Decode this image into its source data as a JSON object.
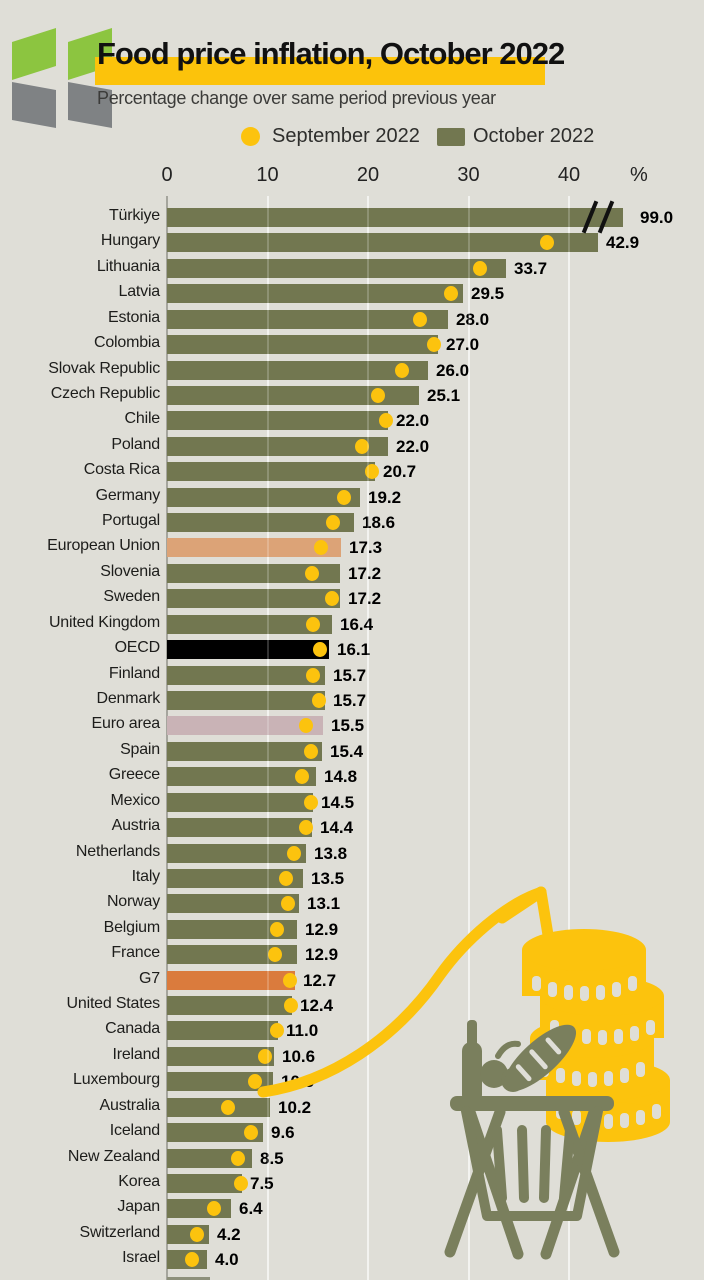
{
  "header": {
    "title_highlighted_part": "Food price inflation,",
    "title_rest": " October 2022",
    "subtitle": "Percentage change over same period previous year"
  },
  "legend": {
    "september_label": "September 2022",
    "october_label": "October 2022"
  },
  "axis": {
    "tick_labels": [
      "0",
      "10",
      "20",
      "30",
      "40"
    ],
    "unit_label": "%"
  },
  "colors": {
    "background": "#dfded7",
    "bar_default": "#727750",
    "dot_yellow": "#fcc30e",
    "highlight_yellow": "#fcc30b",
    "eu_bar": "#dca377",
    "oecd_bar": "#000000",
    "euro_area_bar": "#c9b3b6",
    "g7_bar": "#da7b3d",
    "logo_green": "#8cc540",
    "logo_gray": "#7f8284",
    "illustration_olive": "#7a7f5d"
  },
  "icons": {
    "logo": "oecd-double-chevron-logo",
    "illustration": "grocery-basket-with-coins-and-rising-arrow"
  },
  "chart_data": {
    "type": "bar",
    "orientation": "horizontal",
    "title": "Food price inflation, October 2022",
    "subtitle": "Percentage change over same period previous year",
    "xlabel": "%",
    "xlim": [
      0,
      47
    ],
    "gridlines": [
      10,
      20,
      30,
      40
    ],
    "grid": true,
    "legend_position": "top",
    "series_info": [
      {
        "name": "September 2022",
        "style": "dot",
        "color": "#fcc30e"
      },
      {
        "name": "October 2022",
        "style": "bar",
        "color": "#727750"
      }
    ],
    "truncate_display_value": 45.4,
    "rows": [
      {
        "label": "Türkiye",
        "oct": 99.0,
        "sep": null,
        "truncated": true
      },
      {
        "label": "Hungary",
        "oct": 42.9,
        "sep": 37.8
      },
      {
        "label": "Lithuania",
        "oct": 33.7,
        "sep": 31.1
      },
      {
        "label": "Latvia",
        "oct": 29.5,
        "sep": 28.3
      },
      {
        "label": "Estonia",
        "oct": 28.0,
        "sep": 25.2
      },
      {
        "label": "Colombia",
        "oct": 27.0,
        "sep": 26.6
      },
      {
        "label": "Slovak Republic",
        "oct": 26.0,
        "sep": 23.4
      },
      {
        "label": "Czech Republic",
        "oct": 25.1,
        "sep": 21.0
      },
      {
        "label": "Chile",
        "oct": 22.0,
        "sep": 21.8
      },
      {
        "label": "Poland",
        "oct": 22.0,
        "sep": 19.4
      },
      {
        "label": "Costa Rica",
        "oct": 20.7,
        "sep": 20.4
      },
      {
        "label": "Germany",
        "oct": 19.2,
        "sep": 17.6
      },
      {
        "label": "Portugal",
        "oct": 18.6,
        "sep": 16.5
      },
      {
        "label": "European Union",
        "oct": 17.3,
        "sep": 15.3,
        "color": "#dca377"
      },
      {
        "label": "Slovenia",
        "oct": 17.2,
        "sep": 14.4
      },
      {
        "label": "Sweden",
        "oct": 17.2,
        "sep": 16.4
      },
      {
        "label": "United Kingdom",
        "oct": 16.4,
        "sep": 14.5
      },
      {
        "label": "OECD",
        "oct": 16.1,
        "sep": 15.2,
        "color": "#000000"
      },
      {
        "label": "Finland",
        "oct": 15.7,
        "sep": 14.5
      },
      {
        "label": "Denmark",
        "oct": 15.7,
        "sep": 15.1
      },
      {
        "label": "Euro area",
        "oct": 15.5,
        "sep": 13.8,
        "color": "#c9b3b6"
      },
      {
        "label": "Spain",
        "oct": 15.4,
        "sep": 14.3
      },
      {
        "label": "Greece",
        "oct": 14.8,
        "sep": 13.4
      },
      {
        "label": "Mexico",
        "oct": 14.5,
        "sep": 14.3
      },
      {
        "label": "Austria",
        "oct": 14.4,
        "sep": 13.8
      },
      {
        "label": "Netherlands",
        "oct": 13.8,
        "sep": 12.6
      },
      {
        "label": "Italy",
        "oct": 13.5,
        "sep": 11.8
      },
      {
        "label": "Norway",
        "oct": 13.1,
        "sep": 12.0
      },
      {
        "label": "Belgium",
        "oct": 12.9,
        "sep": 10.9
      },
      {
        "label": "France",
        "oct": 12.9,
        "sep": 10.7
      },
      {
        "label": "G7",
        "oct": 12.7,
        "sep": 12.2,
        "color": "#da7b3d"
      },
      {
        "label": "United States",
        "oct": 12.4,
        "sep": 12.3
      },
      {
        "label": "Canada",
        "oct": 11.0,
        "sep": 10.9
      },
      {
        "label": "Ireland",
        "oct": 10.6,
        "sep": 9.8
      },
      {
        "label": "Luxembourg",
        "oct": 10.5,
        "sep": 8.8
      },
      {
        "label": "Australia",
        "oct": 10.2,
        "sep": 6.1
      },
      {
        "label": "Iceland",
        "oct": 9.6,
        "sep": 8.4
      },
      {
        "label": "New Zealand",
        "oct": 8.5,
        "sep": 7.1
      },
      {
        "label": "Korea",
        "oct": 7.5,
        "sep": 7.4
      },
      {
        "label": "Japan",
        "oct": 6.4,
        "sep": 4.7
      },
      {
        "label": "Switzerland",
        "oct": 4.2,
        "sep": 3.0
      },
      {
        "label": "Israel",
        "oct": 4.0,
        "sep": 2.5
      }
    ]
  }
}
